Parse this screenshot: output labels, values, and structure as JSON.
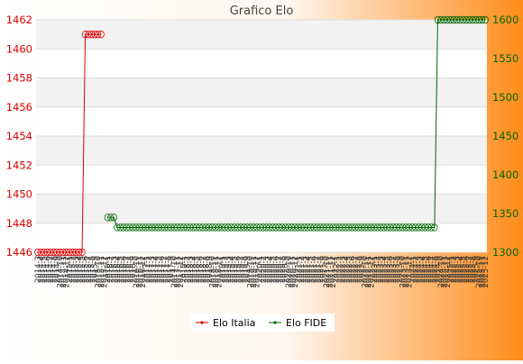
{
  "colors": {
    "italia": "#dd0000",
    "fide": "#006600",
    "background_start": "#ffffff",
    "background_end": "#ff8c1a",
    "band": "#f2f2f2"
  },
  "chart_data": {
    "type": "line",
    "title": "Grafico Elo",
    "grid": true,
    "legend_position": "bottom-center",
    "y_left": {
      "min": 1446,
      "max": 1462,
      "ticks": [
        1446,
        1448,
        1450,
        1452,
        1454,
        1456,
        1458,
        1460,
        1462
      ]
    },
    "y_right": {
      "min": 1300,
      "max": 1600,
      "ticks": [
        1300,
        1350,
        1400,
        1450,
        1500,
        1550,
        1600
      ]
    },
    "x_ticks": [
      "2014-3",
      "2014-4",
      "2014-5",
      "2014-6",
      "2014-7",
      "2014-8",
      "2014-9",
      "2014-10",
      "2014-11",
      "2014-12",
      "2015-1",
      "2015-2",
      "2015-3",
      "2015-4",
      "2015-5",
      "2015-6",
      "2015-7",
      "2015-8",
      "2015-9",
      "2015-10",
      "2015-11",
      "2015-12",
      "2016-1",
      "2016-2",
      "2016-3",
      "2016-4",
      "2016-5",
      "2016-6",
      "2016-7",
      "2016-8",
      "2016-9",
      "2016-10",
      "2016-11",
      "2016-12",
      "2017-1",
      "2017-2",
      "2017-3",
      "2017-4",
      "2017-5",
      "2017-6",
      "2017-7",
      "2017-8",
      "2017-9",
      "2017-10",
      "2017-11",
      "2017-12",
      "2018-1",
      "2018-2",
      "2018-3",
      "2018-4",
      "2018-5",
      "2018-6",
      "2018-7",
      "2018-8",
      "2018-9",
      "2018-10",
      "2018-11",
      "2018-12",
      "2019-1",
      "2019-2",
      "2019-3",
      "2019-4",
      "2019-5",
      "2019-6",
      "2019-7",
      "2019-8",
      "2019-9",
      "2019-10",
      "2019-11",
      "2019-12",
      "2020-1",
      "2020-2",
      "2020-3",
      "2020-4",
      "2020-5",
      "2020-6",
      "2020-7",
      "2020-8",
      "2020-9",
      "2020-10",
      "2020-11",
      "2020-12",
      "2021-1",
      "2021-2",
      "2021-3",
      "2021-4",
      "2021-5",
      "2021-6",
      "2021-7",
      "2021-8",
      "2021-9",
      "2021-10",
      "2021-11",
      "2021-12",
      "2022-1",
      "2022-2",
      "2022-3",
      "2022-4",
      "2022-5",
      "2022-6",
      "2022-7",
      "2022-8",
      "2022-9",
      "2022-10",
      "2022-11",
      "2022-12",
      "2023-1",
      "2023-2",
      "2023-3",
      "2023-4",
      "2023-5",
      "2023-6",
      "2023-7",
      "2023-8",
      "2023-9",
      "2023-10",
      "2023-11",
      "2023-12",
      "2024-1",
      "2024-2",
      "2024-3",
      "2024-4",
      "2024-5",
      "2024-6",
      "2024-7",
      "2024-8",
      "2024-9",
      "2024-10",
      "2024-11",
      "2024-12",
      "2025-1",
      "2025-2",
      "2025-3",
      "2025-4",
      "2025-5",
      "2025-6",
      "2025-7",
      "2025-8",
      "2025-9",
      "2025-10",
      "2025-11",
      "2025-12"
    ],
    "series": [
      {
        "name": "Elo Italia",
        "axis": "left",
        "color": "#dd0000",
        "points": [
          {
            "x": "2014-3",
            "y": 1446
          },
          {
            "x": "2014-4",
            "y": 1446
          },
          {
            "x": "2014-5",
            "y": 1446
          },
          {
            "x": "2014-6",
            "y": 1446
          },
          {
            "x": "2014-7",
            "y": 1446
          },
          {
            "x": "2014-8",
            "y": 1446
          },
          {
            "x": "2014-9",
            "y": 1446
          },
          {
            "x": "2014-10",
            "y": 1446
          },
          {
            "x": "2014-11",
            "y": 1446
          },
          {
            "x": "2014-12",
            "y": 1446
          },
          {
            "x": "2015-1",
            "y": 1446
          },
          {
            "x": "2015-2",
            "y": 1446
          },
          {
            "x": "2015-3",
            "y": 1446
          },
          {
            "x": "2015-4",
            "y": 1446
          },
          {
            "x": "2015-5",
            "y": 1446
          },
          {
            "x": "2015-6",
            "y": 1461
          },
          {
            "x": "2015-7",
            "y": 1461
          },
          {
            "x": "2015-8",
            "y": 1461
          },
          {
            "x": "2015-9",
            "y": 1461
          },
          {
            "x": "2015-10",
            "y": 1461
          },
          {
            "x": "2015-11",
            "y": 1461
          }
        ]
      },
      {
        "name": "Elo FIDE",
        "axis": "right",
        "color": "#006600",
        "segments": [
          {
            "from": "2016-1",
            "to": "2016-3",
            "y": 1345
          },
          {
            "from": "2016-4",
            "to": "2024-8",
            "y": 1332
          },
          {
            "from": "2024-9",
            "to": "2025-12",
            "y": 1600
          }
        ]
      }
    ]
  }
}
